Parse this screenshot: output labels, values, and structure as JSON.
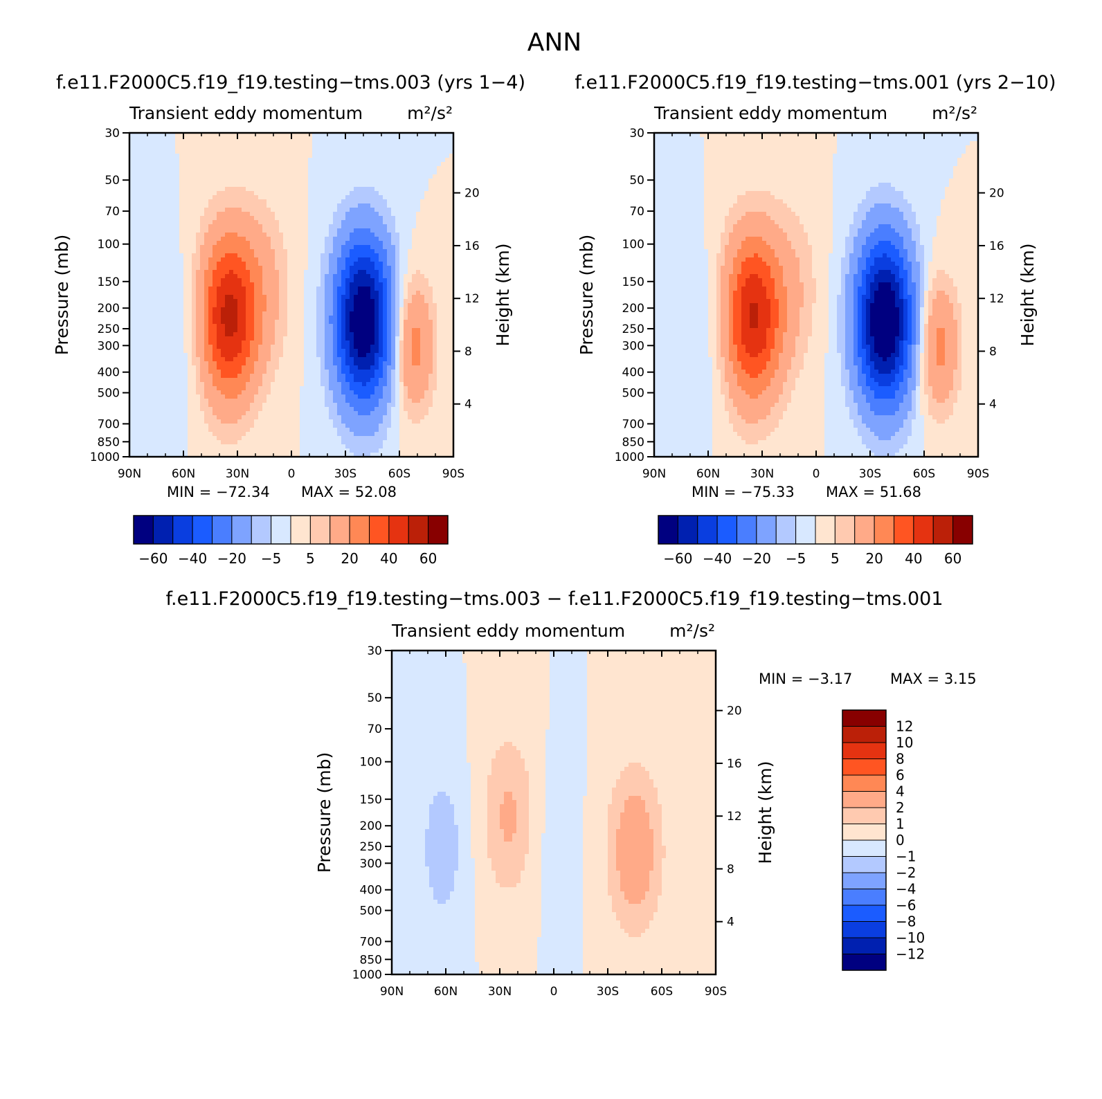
{
  "figure": {
    "title": "ANN",
    "panel_titles": [
      "f.e11.F2000C5.f19_f19.testing−tms.003 (yrs 1−4)",
      "f.e11.F2000C5.f19_f19.testing−tms.001 (yrs 2−10)",
      "f.e11.F2000C5.f19_f19.testing−tms.003 − f.e11.F2000C5.f19_f19.testing−tms.001"
    ],
    "colors": {
      "blues": [
        "#000080",
        "#0020b0",
        "#0a3ee0",
        "#1b5cff",
        "#4a7eff",
        "#7ea3ff",
        "#b3c9ff",
        "#d8e8ff"
      ],
      "reds": [
        "#ffe5d0",
        "#ffcab0",
        "#ffaa88",
        "#ff8855",
        "#ff5522",
        "#e53311",
        "#bb2008",
        "#880000"
      ]
    }
  },
  "chart_data": [
    {
      "type": "heatmap",
      "name_label": "Transient eddy momentum",
      "units": "m²/s²",
      "ylabel": "Pressure (mb)",
      "ylabel_right": "Height (km)",
      "x_ticks": [
        "90N",
        "60N",
        "30N",
        "0",
        "30S",
        "60S",
        "90S"
      ],
      "x_range": [
        90,
        -90
      ],
      "y_ticks": [
        30,
        50,
        70,
        100,
        150,
        200,
        250,
        300,
        400,
        500,
        700,
        850,
        1000
      ],
      "y_range": [
        1000,
        30
      ],
      "y_scale": "log",
      "height_ticks": [
        20,
        16,
        12,
        8,
        4
      ],
      "min_label": "MIN = −72.34",
      "max_label": "MAX = 52.08",
      "min": -72.34,
      "max": 52.08,
      "features": [
        {
          "lat": 35,
          "p": 220,
          "value": 52
        },
        {
          "lat": 15,
          "p": 160,
          "value": 10
        },
        {
          "lat": -40,
          "p": 230,
          "value": -72
        },
        {
          "lat": -68,
          "p": 300,
          "value": 25
        },
        {
          "lat": 60,
          "p": 260,
          "value": -5
        }
      ],
      "colorbar": {
        "orientation": "horizontal",
        "levels": [
          "−60",
          "−40",
          "−20",
          "−5",
          "5",
          "20",
          "40",
          "60"
        ]
      }
    },
    {
      "type": "heatmap",
      "name_label": "Transient eddy momentum",
      "units": "m²/s²",
      "ylabel": "Pressure (mb)",
      "ylabel_right": "Height (km)",
      "x_ticks": [
        "90N",
        "60N",
        "30N",
        "0",
        "30S",
        "60S",
        "90S"
      ],
      "x_range": [
        90,
        -90
      ],
      "y_ticks": [
        30,
        50,
        70,
        100,
        150,
        200,
        250,
        300,
        400,
        500,
        700,
        850,
        1000
      ],
      "y_range": [
        1000,
        30
      ],
      "y_scale": "log",
      "height_ticks": [
        20,
        16,
        12,
        8,
        4
      ],
      "min_label": "MIN = −75.33",
      "max_label": "MAX = 51.68",
      "min": -75.33,
      "max": 51.68,
      "features": [
        {
          "lat": 35,
          "p": 220,
          "value": 51
        },
        {
          "lat": 12,
          "p": 160,
          "value": 8
        },
        {
          "lat": -38,
          "p": 230,
          "value": -75
        },
        {
          "lat": -68,
          "p": 300,
          "value": 24
        },
        {
          "lat": 62,
          "p": 260,
          "value": -5
        }
      ],
      "colorbar": {
        "orientation": "horizontal",
        "levels": [
          "−60",
          "−40",
          "−20",
          "−5",
          "5",
          "20",
          "40",
          "60"
        ]
      }
    },
    {
      "type": "heatmap",
      "name_label": "Transient eddy momentum",
      "units": "m²/s²",
      "ylabel": "Pressure (mb)",
      "ylabel_right": "Height (km)",
      "x_ticks": [
        "90N",
        "60N",
        "30N",
        "0",
        "30S",
        "60S",
        "90S"
      ],
      "x_range": [
        90,
        -90
      ],
      "y_ticks": [
        30,
        50,
        70,
        100,
        150,
        200,
        250,
        300,
        400,
        500,
        700,
        850,
        1000
      ],
      "y_range": [
        1000,
        30
      ],
      "y_scale": "log",
      "height_ticks": [
        20,
        16,
        12,
        8,
        4
      ],
      "min_label": "MIN = −3.17",
      "max_label": "MAX = 3.15",
      "min": -3.17,
      "max": 3.15,
      "features": [
        {
          "lat": -45,
          "p": 260,
          "value": 3.1
        },
        {
          "lat": 25,
          "p": 180,
          "value": 2.2
        },
        {
          "lat": 62,
          "p": 250,
          "value": -1.6
        },
        {
          "lat": 0,
          "p": 220,
          "value": -0.5
        },
        {
          "lat": -80,
          "p": 450,
          "value": 0.4
        }
      ],
      "colorbar": {
        "orientation": "vertical",
        "levels": [
          "12",
          "10",
          "8",
          "6",
          "4",
          "2",
          "1",
          "0",
          "−1",
          "−2",
          "−4",
          "−6",
          "−8",
          "−10",
          "−12"
        ]
      }
    }
  ]
}
